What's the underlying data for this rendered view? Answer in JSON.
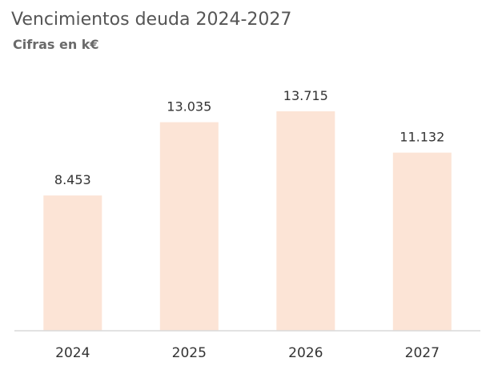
{
  "header": {
    "title": "Vencimientos deuda 2024-2027",
    "subtitle": "Cifras en k€"
  },
  "chart_data": {
    "type": "bar",
    "title": "Vencimientos deuda 2024-2027",
    "subtitle": "Cifras en k€",
    "categories": [
      "2024",
      "2025",
      "2026",
      "2027"
    ],
    "values": [
      8453,
      13035,
      13715,
      11132
    ],
    "value_labels": [
      "8.453",
      "13.035",
      "13.715",
      "11.132"
    ],
    "xlabel": "",
    "ylabel": "",
    "ylim": [
      0,
      14500
    ],
    "grid": false,
    "legend": "none",
    "bar_color": "#fce4d6"
  }
}
